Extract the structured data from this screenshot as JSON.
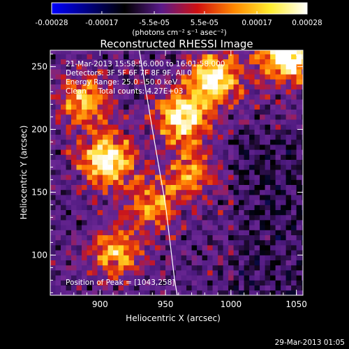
{
  "chart_data": {
    "type": "heatmap",
    "title": "Reconstructed RHESSI Image",
    "xlabel": "Heliocentric X (arcsec)",
    "ylabel": "Heliocentric Y (arcsec)",
    "xlim": [
      862,
      1055
    ],
    "ylim": [
      68,
      263
    ],
    "x_ticks": [
      {
        "value": 900,
        "label": "900"
      },
      {
        "value": 950,
        "label": "950"
      },
      {
        "value": 1000,
        "label": "1000"
      },
      {
        "value": 1050,
        "label": "1050"
      }
    ],
    "y_ticks": [
      {
        "value": 100,
        "label": "100"
      },
      {
        "value": 150,
        "label": "150"
      },
      {
        "value": 200,
        "label": "200"
      },
      {
        "value": 250,
        "label": "250"
      }
    ],
    "colorbar": {
      "range": [
        -0.00028,
        0.00028
      ],
      "tick_values": [
        -0.00028,
        -0.00017,
        -5.5e-05,
        5.5e-05,
        0.00017,
        0.00028
      ],
      "tick_labels": [
        "-0.00028",
        "-0.00017",
        "-5.5e-05",
        "5.5e-05",
        "0.00017",
        "0.00028"
      ],
      "unit_label": "(photons cm⁻² s⁻¹ asec⁻²)",
      "colors": [
        "#0000ff",
        "#000080",
        "#000000",
        "#5a1a8a",
        "#d01010",
        "#ff8800",
        "#ffee30",
        "#ffffff"
      ]
    },
    "annotations": {
      "time_range": "21-Mar-2013 15:58:56.000 to 16:01:58.000",
      "detectors": "Detectors: 3F 5F 6F 7F 8F 9F, All 0",
      "energy": "Energy Range: 25.0 - 50.0 keV",
      "method": "Clean     Total counts: 4.27E+03",
      "peak": "Position of Peak = [1043,258]"
    },
    "hotspots": [
      {
        "x": 905,
        "y": 175,
        "value": 0.00026
      },
      {
        "x": 963,
        "y": 210,
        "value": 0.00025
      },
      {
        "x": 988,
        "y": 240,
        "value": 0.00024
      },
      {
        "x": 888,
        "y": 222,
        "value": 0.00018
      },
      {
        "x": 912,
        "y": 102,
        "value": 0.00017
      },
      {
        "x": 1043,
        "y": 258,
        "value": 0.00028
      },
      {
        "x": 940,
        "y": 140,
        "value": 0.00015
      },
      {
        "x": 970,
        "y": 165,
        "value": 0.00014
      }
    ],
    "limb_curve": [
      {
        "x": 930,
        "y": 263
      },
      {
        "x": 940,
        "y": 200
      },
      {
        "x": 950,
        "y": 140
      },
      {
        "x": 957,
        "y": 80
      },
      {
        "x": 959,
        "y": 68
      }
    ]
  },
  "footer": {
    "timestamp": "29-Mar-2013 01:05"
  }
}
